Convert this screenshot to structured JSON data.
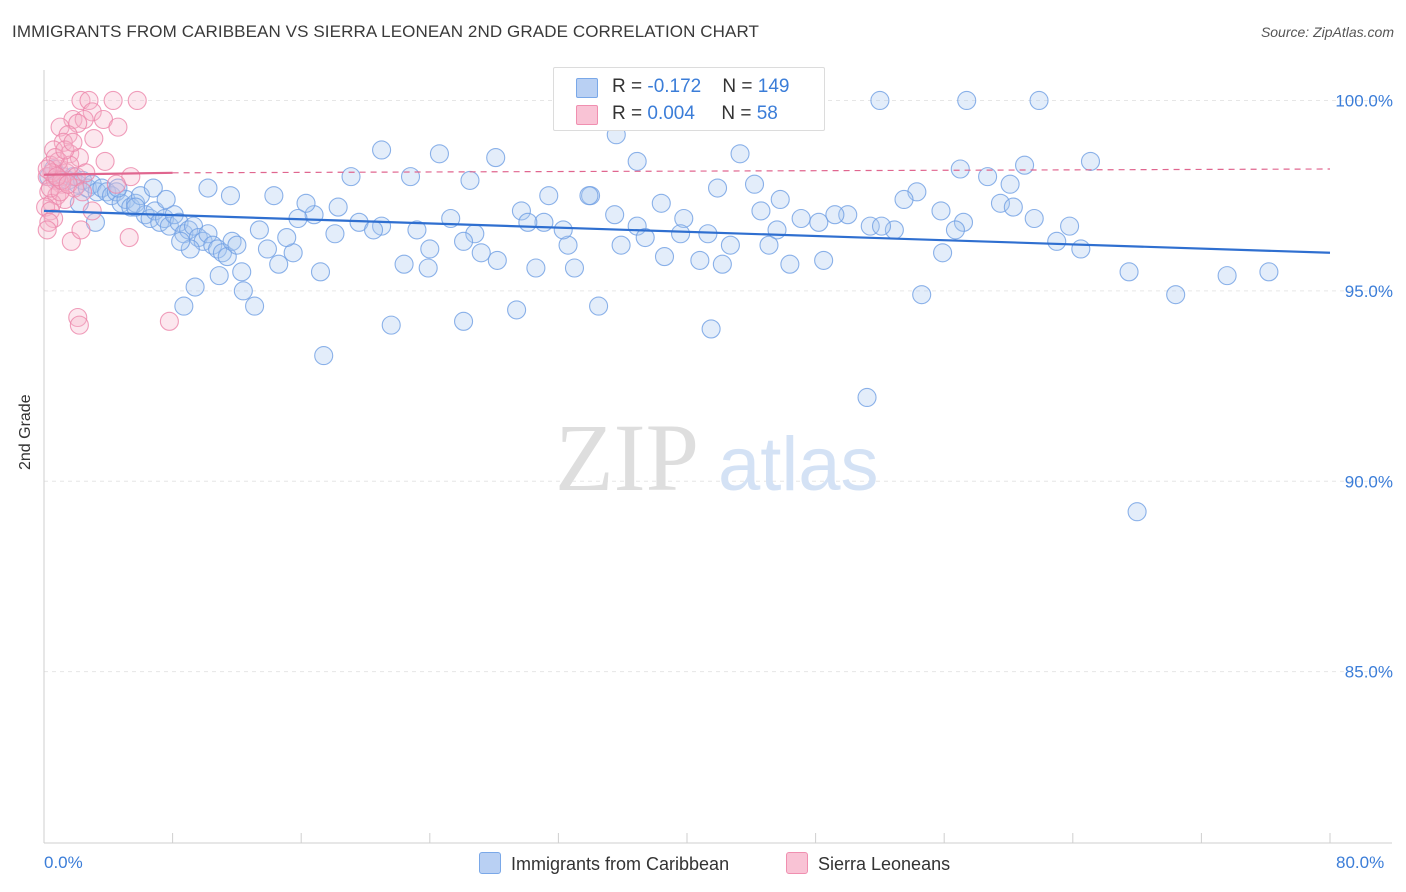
{
  "title": "IMMIGRANTS FROM CARIBBEAN VS SIERRA LEONEAN 2ND GRADE CORRELATION CHART",
  "source": "Source: ZipAtlas.com",
  "watermark": {
    "zip": "ZIP",
    "atlas": "atlas"
  },
  "legend": {
    "row1": {
      "r_label": "R = ",
      "r_value": "-0.172",
      "n_label": "N = ",
      "n_value": "149"
    },
    "row2": {
      "r_label": "R = ",
      "r_value": "0.004",
      "n_label": "N = ",
      "n_value": "58"
    }
  },
  "colors": {
    "blue": "#7aa8e8",
    "blue_line": "#2f6fd0",
    "pink": "#f08fb0",
    "pink_line": "#e0668f",
    "tick_text": "#3b7dd8"
  },
  "chart_data": {
    "type": "scatter",
    "title": "IMMIGRANTS FROM CARIBBEAN VS SIERRA LEONEAN 2ND GRADE CORRELATION CHART",
    "xlabel": "",
    "ylabel": "2nd Grade",
    "xlim": [
      0,
      80
    ],
    "ylim": [
      80.5,
      100.8
    ],
    "x_tick_labels": [
      "0.0%",
      "80.0%"
    ],
    "y_ticks": [
      85,
      90,
      95,
      100
    ],
    "y_tick_labels": [
      "85.0%",
      "90.0%",
      "95.0%",
      "100.0%"
    ],
    "grid": true,
    "legend_position": "top-center",
    "series": [
      {
        "name": "Immigrants from Caribbean",
        "color": "#7aa8e8",
        "trend": {
          "x": [
            0,
            80
          ],
          "y": [
            97.1,
            96.0
          ]
        },
        "points": [
          [
            0.3,
            98.0
          ],
          [
            0.6,
            98.2
          ],
          [
            0.9,
            97.9
          ],
          [
            1.2,
            98.0
          ],
          [
            1.5,
            97.9
          ],
          [
            1.8,
            98.0
          ],
          [
            2.1,
            97.8
          ],
          [
            2.4,
            97.9
          ],
          [
            2.7,
            97.7
          ],
          [
            3.0,
            97.8
          ],
          [
            3.3,
            97.6
          ],
          [
            3.6,
            97.7
          ],
          [
            3.9,
            97.6
          ],
          [
            4.2,
            97.5
          ],
          [
            4.5,
            97.6
          ],
          [
            4.8,
            97.3
          ],
          [
            5.1,
            97.4
          ],
          [
            5.4,
            97.2
          ],
          [
            5.7,
            97.3
          ],
          [
            6.0,
            97.5
          ],
          [
            6.3,
            97.0
          ],
          [
            6.6,
            96.9
          ],
          [
            6.9,
            97.1
          ],
          [
            7.2,
            96.8
          ],
          [
            7.5,
            96.9
          ],
          [
            7.8,
            96.7
          ],
          [
            8.1,
            97.0
          ],
          [
            8.4,
            96.8
          ],
          [
            8.7,
            96.5
          ],
          [
            9.0,
            96.6
          ],
          [
            9.3,
            96.7
          ],
          [
            9.6,
            96.4
          ],
          [
            9.9,
            96.3
          ],
          [
            10.2,
            96.5
          ],
          [
            10.5,
            96.2
          ],
          [
            10.8,
            96.1
          ],
          [
            11.1,
            96.0
          ],
          [
            11.4,
            95.9
          ],
          [
            11.7,
            96.3
          ],
          [
            12.0,
            96.2
          ],
          [
            3.2,
            96.8
          ],
          [
            4.6,
            97.7
          ],
          [
            6.8,
            97.7
          ],
          [
            9.4,
            95.1
          ],
          [
            9.1,
            96.1
          ],
          [
            12.3,
            95.5
          ],
          [
            13.4,
            96.6
          ],
          [
            14.6,
            95.7
          ],
          [
            15.5,
            96.0
          ],
          [
            17.2,
            95.5
          ],
          [
            5.7,
            97.2
          ],
          [
            8.5,
            96.3
          ],
          [
            10.9,
            95.4
          ],
          [
            12.4,
            95.0
          ],
          [
            13.9,
            96.1
          ],
          [
            15.1,
            96.4
          ],
          [
            16.8,
            97.0
          ],
          [
            18.1,
            96.5
          ],
          [
            19.6,
            96.8
          ],
          [
            21.0,
            96.7
          ],
          [
            22.4,
            95.7
          ],
          [
            23.9,
            95.6
          ],
          [
            25.3,
            96.9
          ],
          [
            26.8,
            96.5
          ],
          [
            28.2,
            95.8
          ],
          [
            29.7,
            97.1
          ],
          [
            31.1,
            96.8
          ],
          [
            32.6,
            96.2
          ],
          [
            34.0,
            97.5
          ],
          [
            35.5,
            97.0
          ],
          [
            36.9,
            96.7
          ],
          [
            38.4,
            97.3
          ],
          [
            39.8,
            96.9
          ],
          [
            41.3,
            96.5
          ],
          [
            42.7,
            96.2
          ],
          [
            44.2,
            97.8
          ],
          [
            45.6,
            96.6
          ],
          [
            47.1,
            96.9
          ],
          [
            48.5,
            95.8
          ],
          [
            50.0,
            97.0
          ],
          [
            51.4,
            96.7
          ],
          [
            52.9,
            96.6
          ],
          [
            54.3,
            97.6
          ],
          [
            55.8,
            97.1
          ],
          [
            57.2,
            96.8
          ],
          [
            58.7,
            98.0
          ],
          [
            60.1,
            97.8
          ],
          [
            61.6,
            96.9
          ],
          [
            63.0,
            96.3
          ],
          [
            64.5,
            96.1
          ],
          [
            8.7,
            94.6
          ],
          [
            13.1,
            94.6
          ],
          [
            17.4,
            93.3
          ],
          [
            21.6,
            94.1
          ],
          [
            26.1,
            94.2
          ],
          [
            29.4,
            94.5
          ],
          [
            34.5,
            94.6
          ],
          [
            41.5,
            94.0
          ],
          [
            51.2,
            92.2
          ],
          [
            54.6,
            94.9
          ],
          [
            21.0,
            98.7
          ],
          [
            24.6,
            98.6
          ],
          [
            28.1,
            98.5
          ],
          [
            36.9,
            98.4
          ],
          [
            43.3,
            98.6
          ],
          [
            57.0,
            98.2
          ],
          [
            61.0,
            98.3
          ],
          [
            65.1,
            98.4
          ],
          [
            19.1,
            98.0
          ],
          [
            31.4,
            97.5
          ],
          [
            10.2,
            97.7
          ],
          [
            14.3,
            97.5
          ],
          [
            18.3,
            97.2
          ],
          [
            22.8,
            98.0
          ],
          [
            26.5,
            97.9
          ],
          [
            30.1,
            96.8
          ],
          [
            33.9,
            97.5
          ],
          [
            37.4,
            96.4
          ],
          [
            40.8,
            95.8
          ],
          [
            44.6,
            97.1
          ],
          [
            48.2,
            96.8
          ],
          [
            52.1,
            96.7
          ],
          [
            55.9,
            96.0
          ],
          [
            59.5,
            97.3
          ],
          [
            63.8,
            96.7
          ],
          [
            67.5,
            95.5
          ],
          [
            70.4,
            94.9
          ],
          [
            73.6,
            95.4
          ],
          [
            76.2,
            95.5
          ],
          [
            68.0,
            89.2
          ],
          [
            52.0,
            100.0
          ],
          [
            57.4,
            100.0
          ],
          [
            61.9,
            100.0
          ],
          [
            35.6,
            99.1
          ],
          [
            41.9,
            97.7
          ],
          [
            45.8,
            97.4
          ],
          [
            49.2,
            97.0
          ],
          [
            53.5,
            97.4
          ],
          [
            56.7,
            96.6
          ],
          [
            60.3,
            97.2
          ],
          [
            16.3,
            97.3
          ],
          [
            20.5,
            96.6
          ],
          [
            24.0,
            96.1
          ],
          [
            27.2,
            96.0
          ],
          [
            30.6,
            95.6
          ],
          [
            33.0,
            95.6
          ],
          [
            35.9,
            96.2
          ],
          [
            38.6,
            95.9
          ],
          [
            42.2,
            95.7
          ],
          [
            46.4,
            95.7
          ],
          [
            2.2,
            97.3
          ],
          [
            7.6,
            97.4
          ],
          [
            11.6,
            97.5
          ],
          [
            15.8,
            96.9
          ],
          [
            23.2,
            96.6
          ],
          [
            26.1,
            96.3
          ],
          [
            32.3,
            96.6
          ],
          [
            39.6,
            96.5
          ],
          [
            45.1,
            96.2
          ]
        ]
      },
      {
        "name": "Sierra Leoneans",
        "color": "#f08fb0",
        "trend": {
          "x": [
            0,
            8.0
          ],
          "y": [
            98.05,
            98.1
          ],
          "dashed_to_x": 80,
          "dashed_y": 98.2
        },
        "points": [
          [
            2.3,
            100.0
          ],
          [
            2.8,
            100.0
          ],
          [
            4.3,
            100.0
          ],
          [
            5.8,
            100.0
          ],
          [
            3.0,
            99.7
          ],
          [
            1.8,
            99.5
          ],
          [
            2.5,
            99.5
          ],
          [
            3.7,
            99.5
          ],
          [
            4.6,
            99.3
          ],
          [
            2.1,
            99.4
          ],
          [
            1.0,
            99.3
          ],
          [
            1.5,
            99.1
          ],
          [
            3.1,
            99.0
          ],
          [
            1.2,
            98.9
          ],
          [
            0.6,
            98.7
          ],
          [
            1.6,
            98.6
          ],
          [
            2.2,
            98.5
          ],
          [
            3.8,
            98.4
          ],
          [
            0.4,
            98.3
          ],
          [
            0.9,
            98.2
          ],
          [
            1.4,
            98.1
          ],
          [
            0.2,
            98.0
          ],
          [
            0.7,
            97.9
          ],
          [
            1.1,
            97.8
          ],
          [
            1.9,
            97.7
          ],
          [
            0.3,
            97.6
          ],
          [
            0.8,
            97.5
          ],
          [
            1.3,
            97.4
          ],
          [
            0.5,
            97.3
          ],
          [
            0.1,
            97.2
          ],
          [
            0.4,
            97.1
          ],
          [
            0.6,
            96.9
          ],
          [
            0.3,
            96.8
          ],
          [
            0.2,
            96.6
          ],
          [
            1.7,
            96.3
          ],
          [
            5.3,
            96.4
          ],
          [
            2.3,
            96.6
          ],
          [
            3.0,
            97.1
          ],
          [
            5.4,
            98.0
          ],
          [
            4.5,
            97.8
          ],
          [
            2.1,
            94.3
          ],
          [
            2.2,
            94.1
          ],
          [
            7.8,
            94.2
          ],
          [
            0.9,
            98.4
          ],
          [
            1.6,
            98.3
          ],
          [
            2.0,
            98.0
          ],
          [
            0.4,
            97.7
          ],
          [
            1.0,
            97.6
          ],
          [
            2.6,
            98.1
          ],
          [
            0.7,
            98.5
          ],
          [
            1.3,
            98.7
          ],
          [
            1.8,
            98.9
          ],
          [
            0.5,
            98.1
          ],
          [
            0.2,
            98.2
          ],
          [
            1.1,
            97.9
          ],
          [
            0.8,
            98.0
          ],
          [
            1.5,
            97.8
          ],
          [
            2.4,
            97.6
          ]
        ]
      }
    ]
  },
  "bottom_legend": {
    "item1": "Immigrants from Caribbean",
    "item2": "Sierra Leoneans"
  }
}
